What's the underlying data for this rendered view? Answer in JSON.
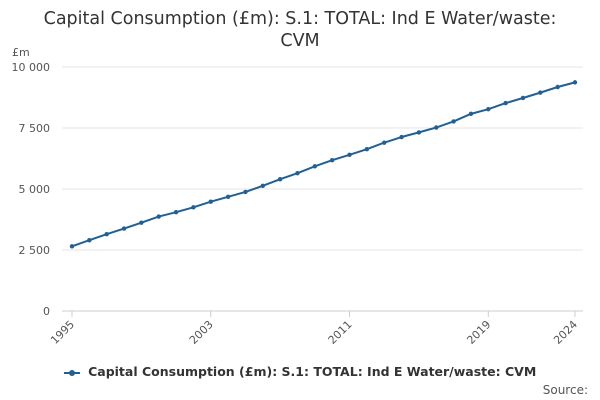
{
  "chart_data": {
    "type": "line",
    "title_lines": [
      "Capital Consumption (£m): S.1: TOTAL: Ind E Water/waste:",
      "CVM"
    ],
    "ylabel": "£m",
    "xlabel": "",
    "ylim": [
      0,
      10000
    ],
    "yticks": [
      0,
      2500,
      5000,
      7500,
      10000
    ],
    "ytick_labels": [
      "0",
      "2 500",
      "5 000",
      "7 500",
      "10 000"
    ],
    "xlim": [
      1995,
      2024
    ],
    "xticks": [
      1995,
      2003,
      2011,
      2019,
      2024
    ],
    "xtick_labels": [
      "1995",
      "2003",
      "2011",
      "2019",
      "2024"
    ],
    "grid": true,
    "legend_position": "bottom",
    "series": [
      {
        "name": "Capital Consumption (£m): S.1: TOTAL: Ind E Water/waste: CVM",
        "color": "#206095",
        "x": [
          1995,
          1996,
          1997,
          1998,
          1999,
          2000,
          2001,
          2002,
          2003,
          2004,
          2005,
          2006,
          2007,
          2008,
          2009,
          2010,
          2011,
          2012,
          2013,
          2014,
          2015,
          2016,
          2017,
          2018,
          2019,
          2020,
          2021,
          2022,
          2023,
          2024
        ],
        "values": [
          2650,
          2900,
          3150,
          3380,
          3620,
          3870,
          4050,
          4250,
          4480,
          4680,
          4880,
          5130,
          5400,
          5650,
          5930,
          6180,
          6400,
          6630,
          6900,
          7130,
          7320,
          7520,
          7770,
          8080,
          8270,
          8520,
          8730,
          8950,
          9180,
          9370
        ]
      }
    ]
  },
  "legend": {
    "label": "Capital Consumption (£m): S.1: TOTAL: Ind E Water/waste: CVM"
  },
  "source": {
    "label": "Source:"
  }
}
